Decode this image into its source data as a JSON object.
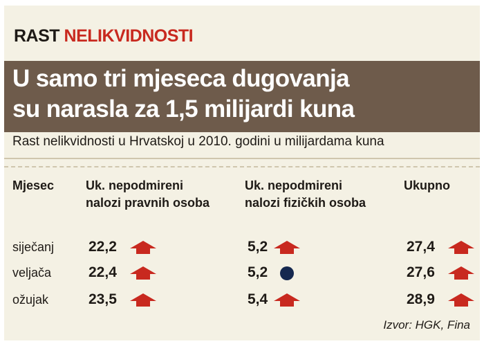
{
  "kicker": {
    "part1": "RAST",
    "part2": "NELIKVIDNOSTI"
  },
  "headline": {
    "line1": "U samo tri mjeseca dugovanja",
    "line2": "su narasla za 1,5 milijardi kuna"
  },
  "subtitle": "Rast nelikvidnosti u Hrvatskoj u 2010. godini u milijardama kuna",
  "colors": {
    "accent": "#c8291f",
    "headline_bg": "#6e5b4b",
    "background": "#f4f1e4",
    "dot": "#15284f"
  },
  "chart_data": {
    "type": "table",
    "title": "Rast nelikvidnosti u Hrvatskoj u 2010. godini u milijardama kuna",
    "columns": [
      {
        "key": "month",
        "line1": "Mjesec",
        "line2": ""
      },
      {
        "key": "legal",
        "line1": "Uk. nepodmireni",
        "line2": "nalozi pravnih osoba"
      },
      {
        "key": "natural",
        "line1": "Uk. nepodmireni",
        "line2": "nalozi fizičkih osoba"
      },
      {
        "key": "total",
        "line1": "Ukupno",
        "line2": ""
      }
    ],
    "rows": [
      {
        "month": "siječanj",
        "legal": "22,2",
        "legal_trend": "up",
        "natural": "5,2",
        "natural_trend": "up",
        "total": "27,4",
        "total_trend": "up"
      },
      {
        "month": "veljača",
        "legal": "22,4",
        "legal_trend": "up",
        "natural": "5,2",
        "natural_trend": "same",
        "total": "27,6",
        "total_trend": "up"
      },
      {
        "month": "ožujak",
        "legal": "23,5",
        "legal_trend": "up",
        "natural": "5,4",
        "natural_trend": "up",
        "total": "28,9",
        "total_trend": "up"
      }
    ],
    "source": "Izvor: HGK, Fina"
  }
}
